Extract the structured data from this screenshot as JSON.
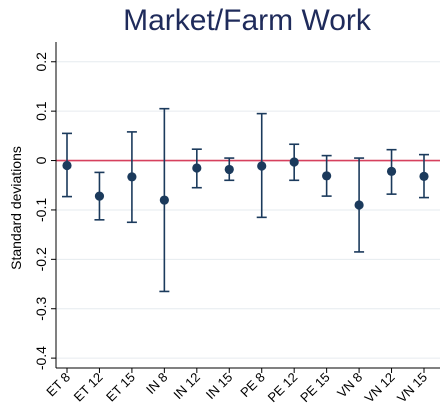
{
  "chart_data": {
    "type": "scatter",
    "title": "Market/Farm Work",
    "ylabel": "Standard deviations",
    "xlabel": "",
    "categories": [
      "ET 8",
      "ET 12",
      "ET 15",
      "IN 8",
      "IN 12",
      "IN 15",
      "PE 8",
      "PE 12",
      "PE 15",
      "VN 8",
      "VN 12",
      "VN 15"
    ],
    "series": [
      {
        "values": [
          -0.01,
          -0.072,
          -0.033,
          -0.08,
          -0.015,
          -0.018,
          -0.011,
          -0.003,
          -0.031,
          -0.09,
          -0.022,
          -0.032
        ],
        "lower": [
          -0.073,
          -0.12,
          -0.125,
          -0.265,
          -0.055,
          -0.04,
          -0.115,
          -0.04,
          -0.072,
          -0.185,
          -0.068,
          -0.075
        ],
        "upper": [
          0.055,
          -0.024,
          0.058,
          0.105,
          0.023,
          0.005,
          0.095,
          0.033,
          0.01,
          0.005,
          0.022,
          0.012
        ]
      }
    ],
    "yticks": [
      {
        "value": 0.2,
        "label": "0.2"
      },
      {
        "value": 0.1,
        "label": "0.1"
      },
      {
        "value": 0,
        "label": "0"
      },
      {
        "value": -0.1,
        "label": "-0.1"
      },
      {
        "value": -0.2,
        "label": "-0.2"
      },
      {
        "value": -0.3,
        "label": "-0.3"
      },
      {
        "value": -0.4,
        "label": "-0.4"
      }
    ],
    "ylim": [
      -0.42,
      0.24
    ],
    "reference_line": 0,
    "grid": true,
    "colors": {
      "point": "#1b3a5c",
      "errorbar": "#1b3a5c",
      "reference_line": "#d6405e",
      "grid": "#e6ebef",
      "title": "#1f2b5b"
    }
  }
}
